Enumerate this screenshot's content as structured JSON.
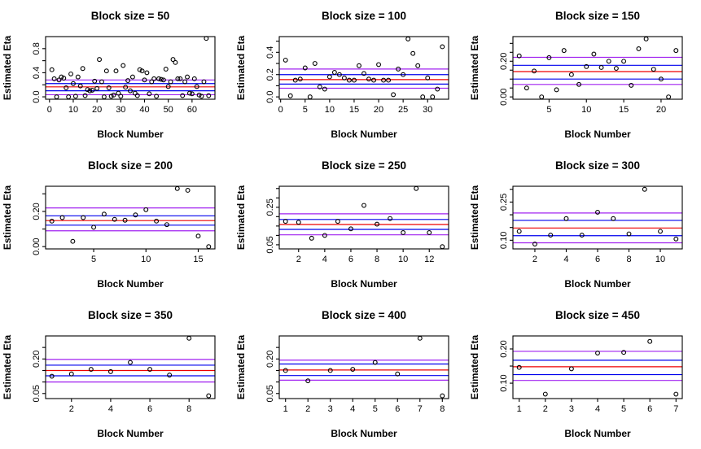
{
  "colors": {
    "foreground": "#000000",
    "background": "#FFFFFF",
    "red": "#EE0000",
    "blue": "#0000EE",
    "purple": "#A020F0"
  },
  "chart_data": [
    {
      "type": "scatter",
      "title": "Block size = 50",
      "xlabel": "Block Number",
      "ylabel": "Estimated Eta",
      "xlim": [
        -1.64,
        69.64
      ],
      "ylim": [
        -0.04,
        1.0
      ],
      "xticks": [
        {
          "v": 0,
          "l": "0"
        },
        {
          "v": 10,
          "l": "10"
        },
        {
          "v": 20,
          "l": "20"
        },
        {
          "v": 30,
          "l": "30"
        },
        {
          "v": 40,
          "l": "40"
        },
        {
          "v": 50,
          "l": "50"
        },
        {
          "v": 60,
          "l": "60"
        }
      ],
      "yticks": [
        {
          "v": 0.0,
          "l": "0.0"
        },
        {
          "v": 0.2
        },
        {
          "v": 0.4,
          "l": "0.4"
        },
        {
          "v": 0.6
        },
        {
          "v": 0.8,
          "l": "0.8"
        }
      ],
      "hlines": [
        {
          "y": 0.28,
          "color": "purple"
        },
        {
          "y": 0.22,
          "color": "blue"
        },
        {
          "y": 0.165,
          "color": "red"
        },
        {
          "y": 0.1,
          "color": "blue"
        },
        {
          "y": 0.035,
          "color": "purple"
        }
      ],
      "x_start": 1,
      "values": [
        0.45,
        0.3,
        0.0,
        0.28,
        0.33,
        0.31,
        0.15,
        0.0,
        0.38,
        0.22,
        0.01,
        0.33,
        0.18,
        0.47,
        0.02,
        0.12,
        0.1,
        0.11,
        0.26,
        0.14,
        0.62,
        0.25,
        0.0,
        0.43,
        0.15,
        0.01,
        0.03,
        0.43,
        0.06,
        0.01,
        0.52,
        0.16,
        0.27,
        0.1,
        0.33,
        0.06,
        0.02,
        0.45,
        0.43,
        0.28,
        0.4,
        0.05,
        0.25,
        0.3,
        0.01,
        0.3,
        0.29,
        0.28,
        0.46,
        0.17,
        0.25,
        0.62,
        0.57,
        0.3,
        0.3,
        0.02,
        0.25,
        0.33,
        0.06,
        0.05,
        0.3,
        0.17,
        0.03,
        0.01,
        0.25,
        0.97,
        0.02
      ]
    },
    {
      "type": "scatter",
      "title": "Block size = 100",
      "xlabel": "Block Number",
      "ylabel": "Estimated Eta",
      "xlim": [
        -0.28,
        34.28
      ],
      "ylim": [
        -0.021,
        0.541
      ],
      "xticks": [
        {
          "v": 0,
          "l": "0"
        },
        {
          "v": 5,
          "l": "5"
        },
        {
          "v": 10,
          "l": "10"
        },
        {
          "v": 15,
          "l": "15"
        },
        {
          "v": 20,
          "l": "20"
        },
        {
          "v": 25,
          "l": "25"
        },
        {
          "v": 30,
          "l": "30"
        }
      ],
      "yticks": [
        {
          "v": 0.0,
          "l": "0.0"
        },
        {
          "v": 0.1
        },
        {
          "v": 0.2,
          "l": "0.2"
        },
        {
          "v": 0.3
        },
        {
          "v": 0.4,
          "l": "0.4"
        },
        {
          "v": 0.5
        }
      ],
      "hlines": [
        {
          "y": 0.25,
          "color": "purple"
        },
        {
          "y": 0.2,
          "color": "blue"
        },
        {
          "y": 0.155,
          "color": "red"
        },
        {
          "y": 0.115,
          "color": "blue"
        },
        {
          "y": 0.078,
          "color": "purple"
        }
      ],
      "x_start": 1,
      "values": [
        0.33,
        0.01,
        0.15,
        0.16,
        0.26,
        0.0,
        0.3,
        0.09,
        0.07,
        0.18,
        0.22,
        0.2,
        0.17,
        0.15,
        0.15,
        0.28,
        0.21,
        0.16,
        0.15,
        0.29,
        0.15,
        0.15,
        0.02,
        0.25,
        0.2,
        0.52,
        0.39,
        0.28,
        0.0,
        0.17,
        0.0,
        0.07,
        0.45
      ]
    },
    {
      "type": "scatter",
      "title": "Block size = 150",
      "xlabel": "Block Number",
      "ylabel": "Estimated Eta",
      "xlim": [
        0.16,
        22.84
      ],
      "ylim": [
        -0.013,
        0.338
      ],
      "xticks": [
        {
          "v": 5,
          "l": "5"
        },
        {
          "v": 10,
          "l": "10"
        },
        {
          "v": 15,
          "l": "15"
        },
        {
          "v": 20,
          "l": "20"
        }
      ],
      "yticks": [
        {
          "v": 0.0,
          "l": "0.00"
        },
        {
          "v": 0.05
        },
        {
          "v": 0.1
        },
        {
          "v": 0.15
        },
        {
          "v": 0.2,
          "l": "0.20"
        },
        {
          "v": 0.25
        },
        {
          "v": 0.3
        }
      ],
      "hlines": [
        {
          "y": 0.222,
          "color": "purple"
        },
        {
          "y": 0.177,
          "color": "blue"
        },
        {
          "y": 0.142,
          "color": "red"
        },
        {
          "y": 0.1,
          "color": "blue"
        },
        {
          "y": 0.07,
          "color": "purple"
        }
      ],
      "x_start": 1,
      "values": [
        0.23,
        0.05,
        0.145,
        0.0,
        0.22,
        0.04,
        0.26,
        0.125,
        0.07,
        0.17,
        0.24,
        0.165,
        0.2,
        0.16,
        0.2,
        0.065,
        0.27,
        0.325,
        0.155,
        0.1,
        0.0,
        0.26
      ]
    },
    {
      "type": "scatter",
      "title": "Block size = 200",
      "xlabel": "Block Number",
      "ylabel": "Estimated Eta",
      "xlim": [
        0.4,
        16.6
      ],
      "ylim": [
        -0.013,
        0.343
      ],
      "xticks": [
        {
          "v": 5,
          "l": "5"
        },
        {
          "v": 10,
          "l": "10"
        },
        {
          "v": 15,
          "l": "15"
        }
      ],
      "yticks": [
        {
          "v": 0.0,
          "l": "0.00"
        },
        {
          "v": 0.1
        },
        {
          "v": 0.2,
          "l": "0.20"
        },
        {
          "v": 0.3
        }
      ],
      "hlines": [
        {
          "y": 0.22,
          "color": "purple"
        },
        {
          "y": 0.175,
          "color": "blue"
        },
        {
          "y": 0.148,
          "color": "red"
        },
        {
          "y": 0.122,
          "color": "blue"
        },
        {
          "y": 0.09,
          "color": "purple"
        }
      ],
      "x_start": 1,
      "values": [
        0.145,
        0.165,
        0.03,
        0.165,
        0.11,
        0.185,
        0.155,
        0.15,
        0.18,
        0.21,
        0.145,
        0.125,
        0.33,
        0.32,
        0.06,
        0.0
      ]
    },
    {
      "type": "scatter",
      "title": "Block size = 250",
      "xlabel": "Block Number",
      "ylabel": "Estimated Eta",
      "xlim": [
        0.52,
        13.48
      ],
      "ylim": [
        0.028,
        0.362
      ],
      "xticks": [
        {
          "v": 2,
          "l": "2"
        },
        {
          "v": 4,
          "l": "4"
        },
        {
          "v": 6,
          "l": "6"
        },
        {
          "v": 8,
          "l": "8"
        },
        {
          "v": 10,
          "l": "10"
        },
        {
          "v": 12,
          "l": "12"
        }
      ],
      "yticks": [
        {
          "v": 0.05,
          "l": "0.05"
        },
        {
          "v": 0.1
        },
        {
          "v": 0.15
        },
        {
          "v": 0.2
        },
        {
          "v": 0.25,
          "l": "0.25"
        },
        {
          "v": 0.3
        },
        {
          "v": 0.35
        }
      ],
      "hlines": [
        {
          "y": 0.215,
          "color": "purple"
        },
        {
          "y": 0.185,
          "color": "blue"
        },
        {
          "y": 0.158,
          "color": "red"
        },
        {
          "y": 0.132,
          "color": "blue"
        },
        {
          "y": 0.103,
          "color": "purple"
        }
      ],
      "x_start": 1,
      "values": [
        0.175,
        0.17,
        0.085,
        0.1,
        0.175,
        0.135,
        0.26,
        0.16,
        0.19,
        0.115,
        0.35,
        0.115,
        0.04
      ]
    },
    {
      "type": "scatter",
      "title": "Block size = 300",
      "xlabel": "Block Number",
      "ylabel": "Estimated Eta",
      "xlim": [
        0.6,
        11.4
      ],
      "ylim": [
        0.066,
        0.312
      ],
      "xticks": [
        {
          "v": 2,
          "l": "2"
        },
        {
          "v": 4,
          "l": "4"
        },
        {
          "v": 6,
          "l": "6"
        },
        {
          "v": 8,
          "l": "8"
        },
        {
          "v": 10,
          "l": "10"
        }
      ],
      "yticks": [
        {
          "v": 0.1,
          "l": "0.10"
        },
        {
          "v": 0.15
        },
        {
          "v": 0.2
        },
        {
          "v": 0.25,
          "l": "0.25"
        },
        {
          "v": 0.3
        }
      ],
      "hlines": [
        {
          "y": 0.207,
          "color": "purple"
        },
        {
          "y": 0.178,
          "color": "blue"
        },
        {
          "y": 0.148,
          "color": "red"
        },
        {
          "y": 0.118,
          "color": "blue"
        },
        {
          "y": 0.09,
          "color": "purple"
        }
      ],
      "x_start": 1,
      "values": [
        0.135,
        0.085,
        0.12,
        0.185,
        0.12,
        0.21,
        0.185,
        0.125,
        0.3,
        0.135,
        0.105
      ]
    },
    {
      "type": "scatter",
      "title": "Block size = 350",
      "xlabel": "Block Number",
      "ylabel": "Estimated Eta",
      "xlim": [
        0.68,
        9.32
      ],
      "ylim": [
        0.028,
        0.3
      ],
      "xticks": [
        {
          "v": 2,
          "l": "2"
        },
        {
          "v": 4,
          "l": "4"
        },
        {
          "v": 6,
          "l": "6"
        },
        {
          "v": 8,
          "l": "8"
        }
      ],
      "yticks": [
        {
          "v": 0.05,
          "l": "0.05"
        },
        {
          "v": 0.1
        },
        {
          "v": 0.15
        },
        {
          "v": 0.2,
          "l": "0.20"
        },
        {
          "v": 0.25
        }
      ],
      "hlines": [
        {
          "y": 0.198,
          "color": "purple"
        },
        {
          "y": 0.173,
          "color": "blue"
        },
        {
          "y": 0.15,
          "color": "red"
        },
        {
          "y": 0.127,
          "color": "blue"
        },
        {
          "y": 0.1,
          "color": "purple"
        }
      ],
      "x_start": 1,
      "values": [
        0.125,
        0.135,
        0.155,
        0.145,
        0.185,
        0.155,
        0.13,
        0.29,
        0.04
      ]
    },
    {
      "type": "scatter",
      "title": "Block size = 400",
      "xlabel": "Block Number",
      "ylabel": "Estimated Eta",
      "xlim": [
        0.72,
        8.28
      ],
      "ylim": [
        0.028,
        0.3
      ],
      "xticks": [
        {
          "v": 1,
          "l": "1"
        },
        {
          "v": 2,
          "l": "2"
        },
        {
          "v": 3,
          "l": "3"
        },
        {
          "v": 4,
          "l": "4"
        },
        {
          "v": 5,
          "l": "5"
        },
        {
          "v": 6,
          "l": "6"
        },
        {
          "v": 7,
          "l": "7"
        },
        {
          "v": 8,
          "l": "8"
        }
      ],
      "yticks": [
        {
          "v": 0.05,
          "l": "0.05"
        },
        {
          "v": 0.1
        },
        {
          "v": 0.15
        },
        {
          "v": 0.2,
          "l": "0.20"
        },
        {
          "v": 0.25
        }
      ],
      "hlines": [
        {
          "y": 0.195,
          "color": "purple"
        },
        {
          "y": 0.178,
          "color": "blue"
        },
        {
          "y": 0.152,
          "color": "red"
        },
        {
          "y": 0.128,
          "color": "blue"
        },
        {
          "y": 0.108,
          "color": "purple"
        }
      ],
      "x_start": 1,
      "values": [
        0.15,
        0.105,
        0.15,
        0.155,
        0.185,
        0.135,
        0.29,
        0.04
      ]
    },
    {
      "type": "scatter",
      "title": "Block size = 450",
      "xlabel": "Block Number",
      "ylabel": "Estimated Eta",
      "xlim": [
        0.76,
        7.24
      ],
      "ylim": [
        0.055,
        0.238
      ],
      "xticks": [
        {
          "v": 1,
          "l": "1"
        },
        {
          "v": 2,
          "l": "2"
        },
        {
          "v": 3,
          "l": "3"
        },
        {
          "v": 4,
          "l": "4"
        },
        {
          "v": 5,
          "l": "5"
        },
        {
          "v": 6,
          "l": "6"
        },
        {
          "v": 7,
          "l": "7"
        }
      ],
      "yticks": [
        {
          "v": 0.1,
          "l": "0.10"
        },
        {
          "v": 0.15
        },
        {
          "v": 0.2,
          "l": "0.20"
        }
      ],
      "hlines": [
        {
          "y": 0.193,
          "color": "purple"
        },
        {
          "y": 0.167,
          "color": "blue"
        },
        {
          "y": 0.148,
          "color": "red"
        },
        {
          "y": 0.125,
          "color": "blue"
        },
        {
          "y": 0.108,
          "color": "purple"
        }
      ],
      "x_start": 1,
      "values": [
        0.146,
        0.068,
        0.142,
        0.188,
        0.19,
        0.222,
        0.068
      ]
    }
  ]
}
